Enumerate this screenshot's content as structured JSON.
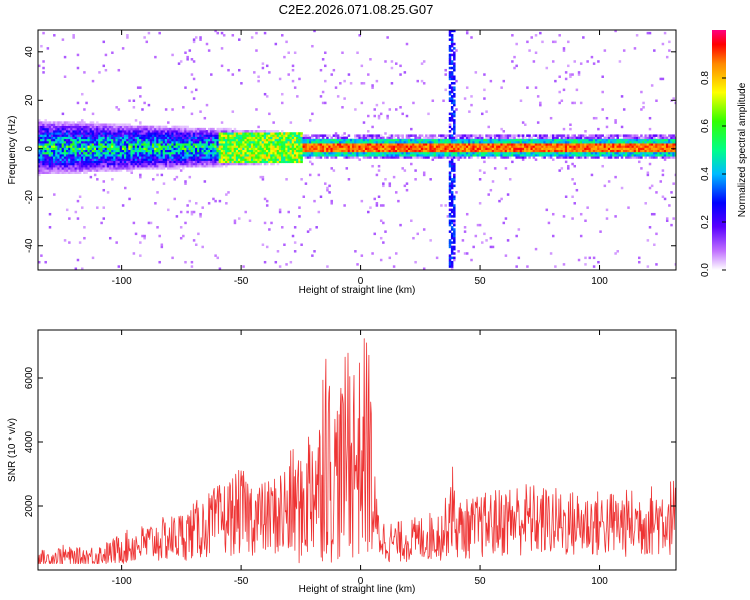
{
  "figure": {
    "title": "C2E2.2026.071.08.25.G07"
  },
  "chart_data": [
    {
      "type": "heatmap",
      "title": "C2E2.2026.071.08.25.G07",
      "xlabel": "Height of straight line (km)",
      "ylabel": "Frequency (Hz)",
      "xlim": [
        -135,
        132
      ],
      "ylim": [
        -50,
        49
      ],
      "xticks": [
        -100,
        -50,
        0,
        50,
        100
      ],
      "yticks": [
        -40,
        -20,
        0,
        20,
        40
      ],
      "grid": false,
      "description_values": {
        "dominant_frequency_hz": 0,
        "broadband_region_km": [
          -135,
          -25
        ],
        "broadband_spread_hz": [
          -12,
          12
        ],
        "narrowband_region_km": [
          -25,
          132
        ],
        "vertical_artifact_km": 38
      },
      "colorbar": {
        "label": "Normalized spectral amplitude",
        "ticks": [
          "0.0",
          "0.2",
          "0.4",
          "0.6",
          "0.8"
        ],
        "range": [
          0,
          1
        ],
        "colormap": "rainbow"
      }
    },
    {
      "type": "line",
      "title": "",
      "xlabel": "Height of straight line (km)",
      "ylabel": "SNR (10 * v/v)",
      "xlim": [
        -135,
        132
      ],
      "ylim": [
        0,
        7500
      ],
      "xticks": [
        -100,
        -50,
        0,
        50,
        100
      ],
      "yticks": [
        2000,
        4000,
        6000
      ],
      "grid": false,
      "series": [
        {
          "name": "SNR",
          "color": "#ee3333",
          "x": [
            -135,
            -130,
            -125,
            -120,
            -115,
            -110,
            -105,
            -100,
            -95,
            -90,
            -85,
            -80,
            -75,
            -70,
            -65,
            -60,
            -55,
            -50,
            -45,
            -40,
            -35,
            -30,
            -27,
            -25,
            -22,
            -20,
            -17,
            -15,
            -12,
            -10,
            -7,
            -5,
            -3,
            0,
            2,
            4,
            5,
            7,
            10,
            15,
            20,
            25,
            30,
            35,
            38,
            40,
            45,
            50,
            55,
            60,
            65,
            70,
            75,
            80,
            85,
            90,
            95,
            100,
            105,
            110,
            115,
            120,
            125,
            130
          ],
          "values": [
            500,
            450,
            600,
            520,
            550,
            600,
            700,
            900,
            1000,
            1100,
            1200,
            1300,
            1400,
            1600,
            1800,
            2000,
            2200,
            2400,
            2200,
            2100,
            2300,
            2600,
            3000,
            2500,
            3300,
            4000,
            3600,
            6500,
            3500,
            4200,
            4500,
            5800,
            5000,
            4800,
            5500,
            5200,
            3000,
            1600,
            1200,
            1150,
            1200,
            1300,
            1400,
            1500,
            2800,
            1700,
            1700,
            1800,
            1900,
            2000,
            2100,
            2100,
            2000,
            2000,
            1900,
            1900,
            1900,
            1900,
            1900,
            1900,
            1950,
            2000,
            2100,
            2200
          ]
        }
      ]
    }
  ]
}
